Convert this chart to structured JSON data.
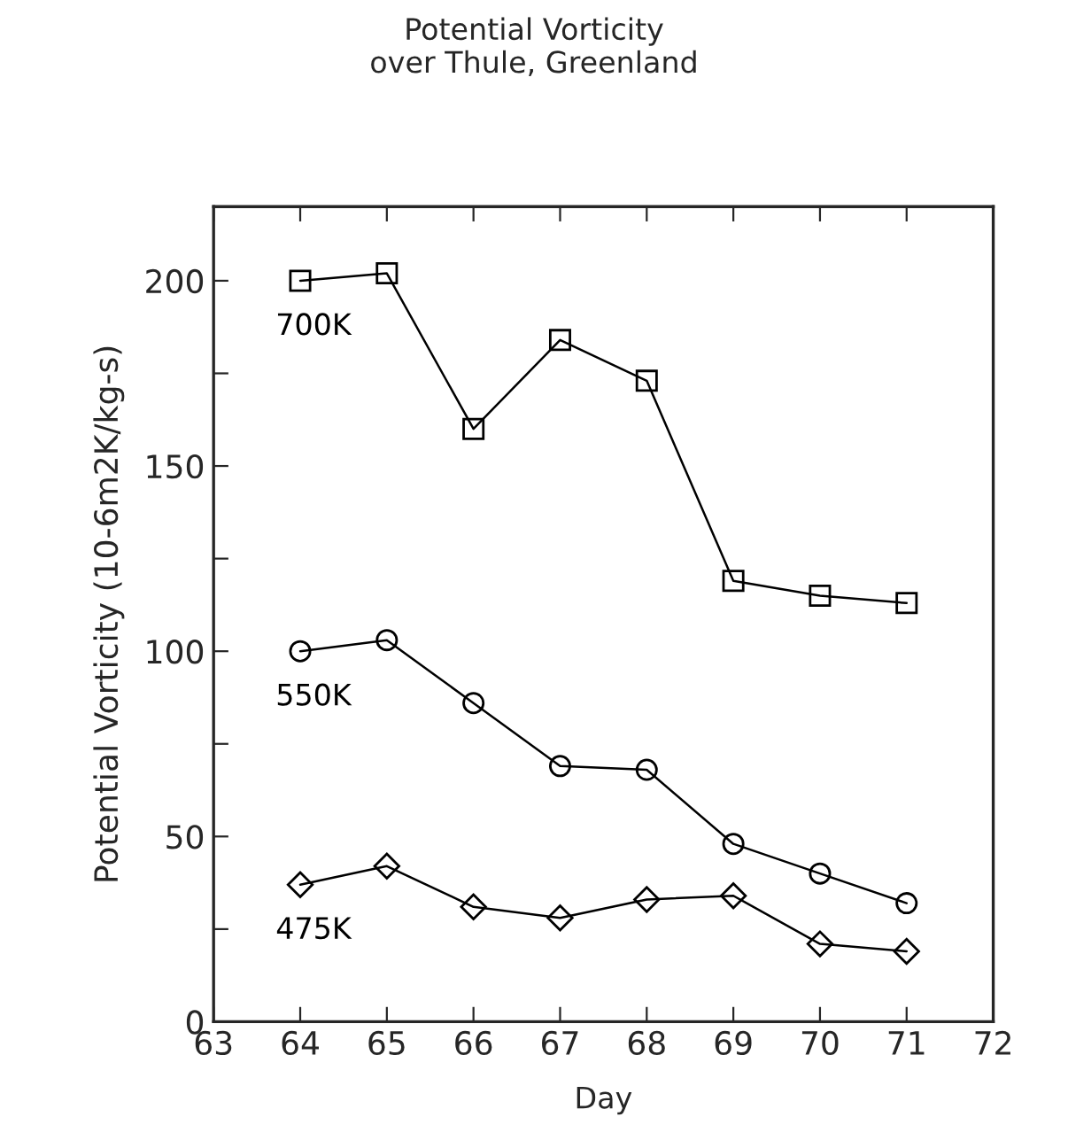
{
  "chart_data": {
    "type": "line",
    "title": "Potential Vorticity\nover Thule, Greenland",
    "xlabel": "Day",
    "ylabel": "Potential Vorticity (10-6m2K/kg-s)",
    "x": [
      64,
      65,
      66,
      67,
      68,
      69,
      70,
      71
    ],
    "series": [
      {
        "name": "700K",
        "color": "#000000",
        "marker": "square",
        "values": [
          200,
          202,
          160,
          184,
          173,
          119,
          115,
          113
        ]
      },
      {
        "name": "550K",
        "color": "#000000",
        "marker": "circle",
        "values": [
          100,
          103,
          86,
          69,
          68,
          48,
          40,
          32
        ]
      },
      {
        "name": "475K",
        "color": "#000000",
        "marker": "diamond",
        "values": [
          37,
          42,
          31,
          28,
          33,
          34,
          21,
          19
        ]
      }
    ],
    "xlim": [
      63,
      72
    ],
    "xticks": [
      63,
      64,
      65,
      66,
      67,
      68,
      69,
      70,
      71,
      72
    ],
    "ylim": [
      0,
      220
    ],
    "yticks": [
      0,
      {
        "value": 25,
        "label": null
      },
      50,
      {
        "value": 75,
        "label": null
      },
      100,
      {
        "value": 125,
        "label": null
      },
      150,
      {
        "value": 175,
        "label": null
      },
      200
    ],
    "grid": false,
    "legend": false,
    "line_style": "solid"
  }
}
